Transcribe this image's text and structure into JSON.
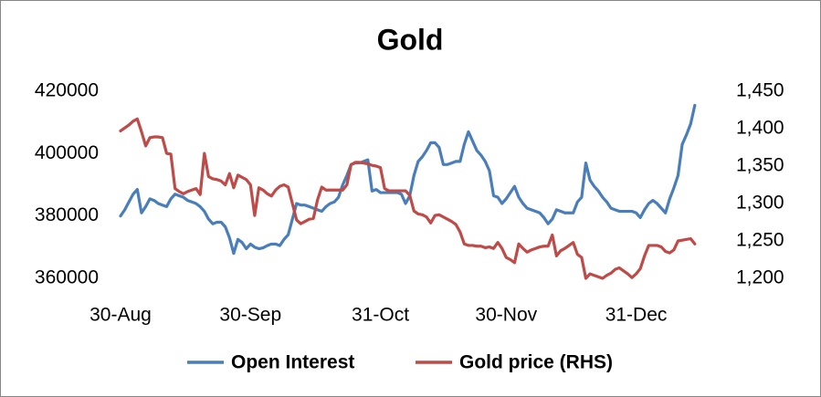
{
  "chart_data": {
    "type": "line",
    "title": "Gold",
    "legend": "bottom",
    "categories": [
      "30-Aug",
      null,
      null,
      null,
      null,
      null,
      null,
      null,
      null,
      null,
      null,
      null,
      null,
      null,
      null,
      null,
      null,
      null,
      null,
      null,
      null,
      null,
      null,
      null,
      null,
      null,
      null,
      null,
      null,
      null,
      null,
      "30-Sep",
      null,
      null,
      null,
      null,
      null,
      null,
      null,
      null,
      null,
      null,
      null,
      null,
      null,
      null,
      null,
      null,
      null,
      null,
      null,
      null,
      null,
      null,
      null,
      null,
      null,
      null,
      null,
      null,
      null,
      null,
      "31-Oct",
      null,
      null,
      null,
      null,
      null,
      null,
      null,
      null,
      null,
      null,
      null,
      null,
      null,
      null,
      null,
      null,
      null,
      null,
      null,
      null,
      null,
      null,
      null,
      null,
      null,
      null,
      null,
      null,
      null,
      "30-Nov",
      null,
      null,
      null,
      null,
      null,
      null,
      null,
      null,
      null,
      null,
      null,
      null,
      null,
      null,
      null,
      null,
      null,
      null,
      null,
      null,
      null,
      null,
      null,
      null,
      null,
      null,
      null,
      null,
      null,
      null,
      "31-Dec",
      null,
      null,
      null,
      null,
      null,
      null,
      null,
      null,
      null,
      null,
      null,
      null,
      null,
      null
    ],
    "series": [
      {
        "name": "Open Interest",
        "color": "#4a7ebb",
        "values": [
          380000,
          382000,
          384500,
          387000,
          388500,
          381000,
          383000,
          385500,
          385000,
          384000,
          383500,
          383000,
          385500,
          387000,
          386500,
          386000,
          385000,
          384500,
          384000,
          383000,
          381500,
          379000,
          377500,
          378000,
          378000,
          376500,
          373000,
          368000,
          372500,
          371500,
          369500,
          371000,
          370000,
          369500,
          369800,
          370500,
          371000,
          371000,
          370500,
          372500,
          374000,
          379000,
          384000,
          383500,
          383500,
          383000,
          382500,
          382000,
          381500,
          383000,
          384000,
          384500,
          386000,
          390000,
          393000,
          396500,
          397000,
          397000,
          397500,
          398000,
          388000,
          388500,
          387500,
          387500,
          387500,
          387500,
          387500,
          387000,
          384000,
          386500,
          393000,
          397500,
          399000,
          401000,
          403500,
          403500,
          402000,
          396500,
          396500,
          397000,
          397500,
          397500,
          403000,
          407000,
          404000,
          401000,
          399500,
          397500,
          394500,
          386500,
          386000,
          384000,
          385500,
          387500,
          389500,
          386000,
          384000,
          382500,
          382000,
          381500,
          381000,
          379500,
          377500,
          379000,
          382000,
          381500,
          381000,
          381000,
          381000,
          384500,
          386000,
          397000,
          391500,
          389500,
          388000,
          386000,
          384500,
          382500,
          382000,
          381500,
          381500,
          381500,
          381500,
          381000,
          379500,
          382000,
          384000,
          385000,
          384000,
          382500,
          381000,
          385500,
          389000,
          393000,
          403000,
          406000,
          409500,
          415500
        ]
      },
      {
        "name": "Gold price (RHS)",
        "color": "#be4b48",
        "axis": "y2",
        "values": [
          1397,
          1401,
          1405,
          1410,
          1413,
          1396,
          1377,
          1388,
          1389,
          1389,
          1388,
          1367,
          1366,
          1320,
          1316,
          1313,
          1316,
          1318,
          1320,
          1312,
          1367,
          1336,
          1333,
          1332,
          1330,
          1325,
          1340,
          1321,
          1338,
          1335,
          1332,
          1325,
          1284,
          1321,
          1318,
          1313,
          1310,
          1318,
          1323,
          1325,
          1322,
          1300,
          1278,
          1273,
          1276,
          1279,
          1280,
          1305,
          1322,
          1318,
          1318,
          1318,
          1318,
          1318,
          1325,
          1352,
          1355,
          1355,
          1354,
          1353,
          1351,
          1350,
          1348,
          1320,
          1317,
          1317,
          1317,
          1317,
          1317,
          1311,
          1290,
          1286,
          1285,
          1282,
          1274,
          1284,
          1285,
          1282,
          1279,
          1276,
          1272,
          1262,
          1246,
          1244,
          1244,
          1243,
          1243,
          1241,
          1242,
          1240,
          1248,
          1240,
          1228,
          1225,
          1221,
          1246,
          1240,
          1235,
          1238,
          1240,
          1242,
          1243,
          1243,
          1258,
          1230,
          1237,
          1240,
          1244,
          1248,
          1232,
          1228,
          1200,
          1206,
          1204,
          1202,
          1200,
          1204,
          1207,
          1212,
          1214,
          1210,
          1206,
          1201,
          1206,
          1213,
          1230,
          1244,
          1244,
          1244,
          1242,
          1236,
          1234,
          1238,
          1250,
          1251,
          1252,
          1253,
          1246
        ]
      }
    ],
    "ylim": [
      360000,
      420000
    ],
    "yticks": [
      360000,
      380000,
      400000,
      420000
    ],
    "y2lim": [
      1200,
      1450
    ],
    "y2ticks": [
      {
        "value": 1200,
        "label": "1,200"
      },
      {
        "value": 1250,
        "label": "1,250"
      },
      {
        "value": 1300,
        "label": "1,300"
      },
      {
        "value": 1350,
        "label": "1,350"
      },
      {
        "value": 1400,
        "label": "1,400"
      },
      {
        "value": 1450,
        "label": "1,450"
      }
    ],
    "grid": false
  }
}
